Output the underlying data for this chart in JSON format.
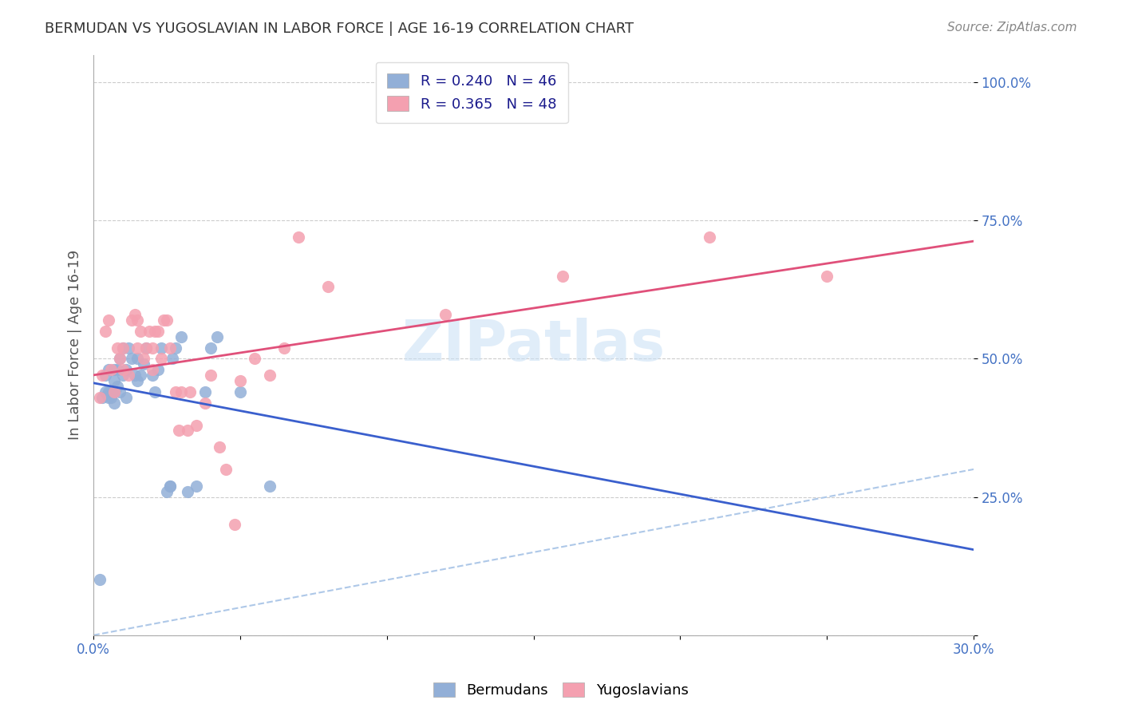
{
  "title": "BERMUDAN VS YUGOSLAVIAN IN LABOR FORCE | AGE 16-19 CORRELATION CHART",
  "source": "Source: ZipAtlas.com",
  "ylabel": "In Labor Force | Age 16-19",
  "xlabel": "",
  "xlim": [
    0.0,
    0.3
  ],
  "ylim": [
    0.0,
    1.05
  ],
  "yticks": [
    0.0,
    0.25,
    0.5,
    0.75,
    1.0
  ],
  "ytick_labels": [
    "",
    "25.0%",
    "50.0%",
    "75.0%",
    "100.0%"
  ],
  "xticks": [
    0.0,
    0.05,
    0.1,
    0.15,
    0.2,
    0.25,
    0.3
  ],
  "xtick_labels": [
    "0.0%",
    "",
    "",
    "",
    "",
    "",
    "30.0%"
  ],
  "blue_R": 0.24,
  "blue_N": 46,
  "pink_R": 0.365,
  "pink_N": 48,
  "legend_label_blue": "Bermudans",
  "legend_label_pink": "Yugoslavians",
  "blue_color": "#92afd7",
  "pink_color": "#f4a0b0",
  "blue_line_color": "#3a5fcd",
  "pink_line_color": "#e0507a",
  "title_color": "#333333",
  "axis_label_color": "#555555",
  "tick_color": "#4472c4",
  "grid_color": "#cccccc",
  "watermark": "ZIPatlas",
  "blue_x": [
    0.002,
    0.003,
    0.004,
    0.004,
    0.005,
    0.005,
    0.005,
    0.006,
    0.006,
    0.007,
    0.007,
    0.007,
    0.007,
    0.008,
    0.008,
    0.009,
    0.009,
    0.01,
    0.01,
    0.011,
    0.011,
    0.012,
    0.013,
    0.014,
    0.015,
    0.015,
    0.016,
    0.017,
    0.018,
    0.02,
    0.021,
    0.022,
    0.023,
    0.025,
    0.026,
    0.026,
    0.027,
    0.028,
    0.03,
    0.032,
    0.035,
    0.038,
    0.04,
    0.042,
    0.05,
    0.06
  ],
  "blue_y": [
    0.1,
    0.43,
    0.44,
    0.47,
    0.43,
    0.44,
    0.48,
    0.43,
    0.44,
    0.42,
    0.44,
    0.46,
    0.48,
    0.45,
    0.48,
    0.44,
    0.5,
    0.47,
    0.52,
    0.43,
    0.48,
    0.52,
    0.5,
    0.47,
    0.46,
    0.5,
    0.47,
    0.49,
    0.52,
    0.47,
    0.44,
    0.48,
    0.52,
    0.26,
    0.27,
    0.27,
    0.5,
    0.52,
    0.54,
    0.26,
    0.27,
    0.44,
    0.52,
    0.54,
    0.44,
    0.27
  ],
  "pink_x": [
    0.002,
    0.003,
    0.004,
    0.005,
    0.006,
    0.007,
    0.008,
    0.009,
    0.01,
    0.01,
    0.012,
    0.013,
    0.014,
    0.015,
    0.015,
    0.016,
    0.017,
    0.018,
    0.019,
    0.02,
    0.02,
    0.021,
    0.022,
    0.023,
    0.024,
    0.025,
    0.026,
    0.028,
    0.029,
    0.03,
    0.032,
    0.033,
    0.035,
    0.038,
    0.04,
    0.043,
    0.045,
    0.048,
    0.05,
    0.055,
    0.06,
    0.065,
    0.07,
    0.08,
    0.12,
    0.16,
    0.21,
    0.25
  ],
  "pink_y": [
    0.43,
    0.47,
    0.55,
    0.57,
    0.48,
    0.44,
    0.52,
    0.5,
    0.48,
    0.52,
    0.47,
    0.57,
    0.58,
    0.52,
    0.57,
    0.55,
    0.5,
    0.52,
    0.55,
    0.48,
    0.52,
    0.55,
    0.55,
    0.5,
    0.57,
    0.57,
    0.52,
    0.44,
    0.37,
    0.44,
    0.37,
    0.44,
    0.38,
    0.42,
    0.47,
    0.34,
    0.3,
    0.2,
    0.46,
    0.5,
    0.47,
    0.52,
    0.72,
    0.63,
    0.58,
    0.65,
    0.72,
    0.65
  ]
}
